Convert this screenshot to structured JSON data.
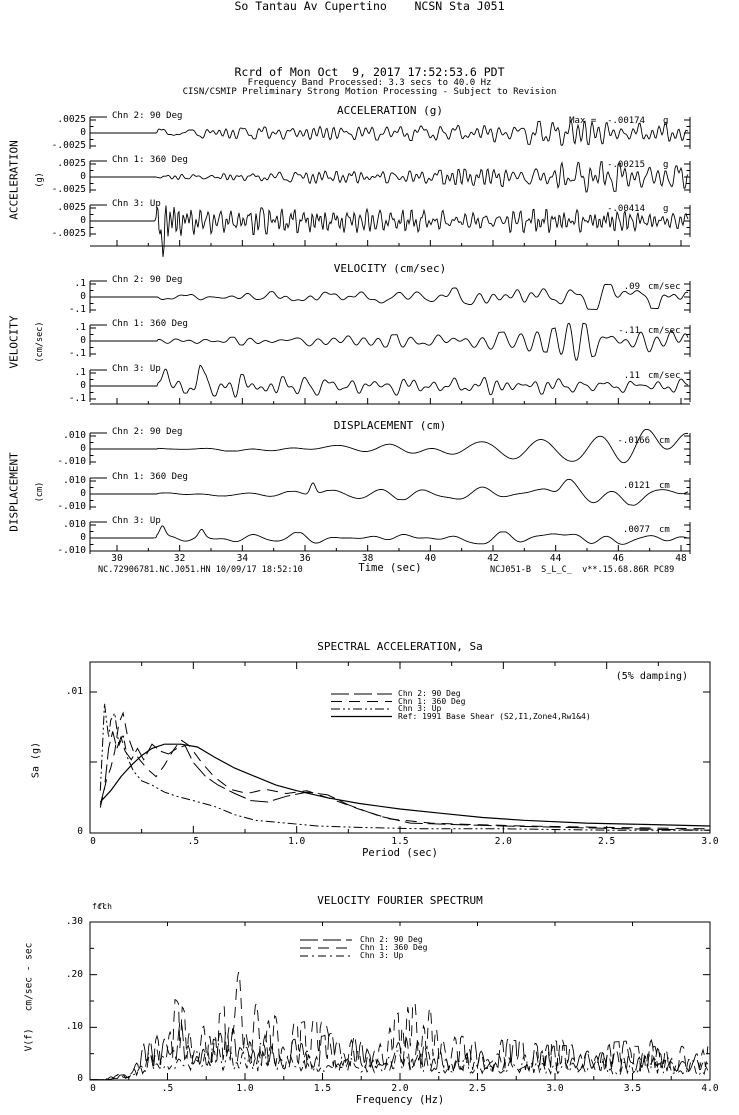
{
  "header": {
    "station_line": "So Tantau Av Cupertino    NCSN Sta J051",
    "record_line": "Rcrd of Mon Oct  9, 2017 17:52:53.6 PDT",
    "band_line": "Frequency Band Processed: 3.3 secs to 40.0 Hz",
    "notice_line": "CISN/CSMIP Preliminary Strong Motion Processing - Subject to Revision"
  },
  "footer": {
    "left": "NC.72906781.NC.J051.HN 10/09/17 18:52:10",
    "right": "NCJ051-B  S_L_C_  v**.15.68.86R PC89"
  },
  "chart_data": [
    {
      "id": "acceleration_time_history",
      "type": "line",
      "title": "ACCELERATION (g)",
      "ylabel": "ACCELERATION",
      "yunit": "(g)",
      "ytick_labels": [
        ".0025",
        "0",
        "-.0025"
      ],
      "ytick_values": [
        0.0025,
        0,
        -0.0025
      ],
      "xlim_sec": [
        29.1,
        48.3
      ],
      "channels": [
        {
          "label": "Chn 2: 90 Deg",
          "max_label": "Max =  -.00174",
          "max_value": -0.00174,
          "unit": "g"
        },
        {
          "label": "Chn 1: 360 Deg",
          "max_label": "-.00215",
          "max_value": -0.00215,
          "unit": "g"
        },
        {
          "label": "Chn 3: Up",
          "max_label": "-.00414",
          "max_value": -0.00414,
          "unit": "g"
        }
      ]
    },
    {
      "id": "velocity_time_history",
      "type": "line",
      "title": "VELOCITY (cm/sec)",
      "ylabel": "VELOCITY",
      "yunit": "(cm/sec)",
      "ytick_labels": [
        ".1",
        "0",
        "-.1"
      ],
      "ytick_values": [
        0.1,
        0,
        -0.1
      ],
      "xlim_sec": [
        29.1,
        48.3
      ],
      "channels": [
        {
          "label": "Chn 2: 90 Deg",
          "max_label": ".09",
          "max_value": 0.09,
          "unit": "cm/sec"
        },
        {
          "label": "Chn 1: 360 Deg",
          "max_label": "-.11",
          "max_value": -0.11,
          "unit": "cm/sec"
        },
        {
          "label": "Chn 3: Up",
          "max_label": ".11",
          "max_value": 0.11,
          "unit": "cm/sec"
        }
      ]
    },
    {
      "id": "displacement_time_history",
      "type": "line",
      "title": "DISPLACEMENT (cm)",
      "ylabel": "DISPLACEMENT",
      "yunit": "(cm)",
      "ytick_labels": [
        ".010",
        "0",
        "-.010"
      ],
      "ytick_values": [
        0.01,
        0,
        -0.01
      ],
      "xlim_sec": [
        29.1,
        48.3
      ],
      "xlabel": "Time (sec)",
      "xticks": [
        "30",
        "32",
        "34",
        "36",
        "38",
        "40",
        "42",
        "44",
        "46",
        "48"
      ],
      "channels": [
        {
          "label": "Chn 2: 90 Deg",
          "max_label": "-.0166",
          "max_value": -0.0166,
          "unit": "cm"
        },
        {
          "label": "Chn 1: 360 Deg",
          "max_label": ".0121",
          "max_value": 0.0121,
          "unit": "cm"
        },
        {
          "label": "Chn 3: Up",
          "max_label": ".0077",
          "max_value": 0.0077,
          "unit": "cm"
        }
      ]
    },
    {
      "id": "spectral_acceleration",
      "type": "line",
      "title": "SPECTRAL ACCELERATION, Sa",
      "note": "(5% damping)",
      "xlabel": "Period (sec)",
      "ylabel": "Sa (g)",
      "xlim": [
        0,
        3.0
      ],
      "ylim": [
        0,
        0.0121
      ],
      "xticks": [
        "0",
        ".5",
        "1.0",
        "1.5",
        "2.0",
        "2.5",
        "3.0"
      ],
      "ytick_labels": [
        ".01",
        "0"
      ],
      "ytick_values": [
        0.01,
        0
      ],
      "grid": false,
      "legend_position": "top-center",
      "series": [
        {
          "name": "Chn 2: 90 Deg",
          "dash": "long-dash",
          "points": [
            [
              0.05,
              0.002
            ],
            [
              0.07,
              0.0032
            ],
            [
              0.09,
              0.006
            ],
            [
              0.11,
              0.0072
            ],
            [
              0.13,
              0.006
            ],
            [
              0.15,
              0.0068
            ],
            [
              0.17,
              0.0058
            ],
            [
              0.2,
              0.0052
            ],
            [
              0.23,
              0.006
            ],
            [
              0.26,
              0.0052
            ],
            [
              0.3,
              0.0063
            ],
            [
              0.34,
              0.0058
            ],
            [
              0.38,
              0.0056
            ],
            [
              0.42,
              0.006
            ],
            [
              0.46,
              0.0062
            ],
            [
              0.5,
              0.005
            ],
            [
              0.56,
              0.004
            ],
            [
              0.62,
              0.0034
            ],
            [
              0.7,
              0.0028
            ],
            [
              0.78,
              0.0023
            ],
            [
              0.86,
              0.0022
            ],
            [
              0.95,
              0.0026
            ],
            [
              1.05,
              0.0029
            ],
            [
              1.15,
              0.0027
            ],
            [
              1.25,
              0.002
            ],
            [
              1.4,
              0.0012
            ],
            [
              1.55,
              0.0007
            ],
            [
              1.75,
              0.0006
            ],
            [
              2.0,
              0.0005
            ],
            [
              2.3,
              0.0004
            ],
            [
              2.6,
              0.0003
            ],
            [
              3.0,
              0.0002
            ]
          ]
        },
        {
          "name": "Chn 1: 360 Deg",
          "dash": "dash",
          "points": [
            [
              0.05,
              0.0018
            ],
            [
              0.08,
              0.0038
            ],
            [
              0.1,
              0.0046
            ],
            [
              0.12,
              0.0058
            ],
            [
              0.14,
              0.0078
            ],
            [
              0.16,
              0.0085
            ],
            [
              0.18,
              0.007
            ],
            [
              0.21,
              0.0058
            ],
            [
              0.24,
              0.0052
            ],
            [
              0.28,
              0.0045
            ],
            [
              0.32,
              0.004
            ],
            [
              0.36,
              0.0048
            ],
            [
              0.4,
              0.0058
            ],
            [
              0.44,
              0.0066
            ],
            [
              0.48,
              0.0062
            ],
            [
              0.54,
              0.005
            ],
            [
              0.6,
              0.004
            ],
            [
              0.68,
              0.0031
            ],
            [
              0.76,
              0.0028
            ],
            [
              0.85,
              0.0031
            ],
            [
              0.95,
              0.0028
            ],
            [
              1.05,
              0.003
            ],
            [
              1.15,
              0.0025
            ],
            [
              1.3,
              0.0017
            ],
            [
              1.45,
              0.001
            ],
            [
              1.65,
              0.0007
            ],
            [
              1.85,
              0.0006
            ],
            [
              2.1,
              0.0005
            ],
            [
              2.5,
              0.0004
            ],
            [
              3.0,
              0.0003
            ]
          ]
        },
        {
          "name": "Chn 3: Up",
          "dash": "dash-dot-dot",
          "points": [
            [
              0.05,
              0.003
            ],
            [
              0.06,
              0.006
            ],
            [
              0.07,
              0.0092
            ],
            [
              0.08,
              0.008
            ],
            [
              0.09,
              0.0068
            ],
            [
              0.1,
              0.008
            ],
            [
              0.12,
              0.0085
            ],
            [
              0.14,
              0.0062
            ],
            [
              0.16,
              0.007
            ],
            [
              0.18,
              0.0054
            ],
            [
              0.21,
              0.0044
            ],
            [
              0.25,
              0.0037
            ],
            [
              0.3,
              0.0034
            ],
            [
              0.36,
              0.0029
            ],
            [
              0.42,
              0.0026
            ],
            [
              0.5,
              0.0023
            ],
            [
              0.6,
              0.0019
            ],
            [
              0.7,
              0.0013
            ],
            [
              0.8,
              0.0009
            ],
            [
              0.95,
              0.0007
            ],
            [
              1.1,
              0.0005
            ],
            [
              1.3,
              0.0004
            ],
            [
              1.6,
              0.0003
            ],
            [
              2.0,
              0.0003
            ],
            [
              2.5,
              0.0002
            ],
            [
              3.0,
              0.0002
            ]
          ]
        },
        {
          "name": "Ref: 1991 Base Shear (S2,I1,Zone4,Rw1&4)",
          "dash": "solid",
          "points": [
            [
              0.05,
              0.0022
            ],
            [
              0.1,
              0.003
            ],
            [
              0.15,
              0.004
            ],
            [
              0.2,
              0.0048
            ],
            [
              0.25,
              0.0055
            ],
            [
              0.3,
              0.006
            ],
            [
              0.36,
              0.0063
            ],
            [
              0.44,
              0.0063
            ],
            [
              0.52,
              0.0061
            ],
            [
              0.6,
              0.0054
            ],
            [
              0.7,
              0.0046
            ],
            [
              0.8,
              0.004
            ],
            [
              0.9,
              0.0034
            ],
            [
              1.0,
              0.003
            ],
            [
              1.15,
              0.0025
            ],
            [
              1.3,
              0.0021
            ],
            [
              1.5,
              0.0017
            ],
            [
              1.7,
              0.0014
            ],
            [
              1.9,
              0.0011
            ],
            [
              2.1,
              0.0009
            ],
            [
              2.4,
              0.0007
            ],
            [
              2.7,
              0.0006
            ],
            [
              3.0,
              0.0005
            ]
          ]
        }
      ]
    },
    {
      "id": "velocity_fourier_spectrum",
      "type": "line",
      "title": "VELOCITY FOURIER SPECTRUM",
      "fc_labels": [
        "fcl",
        "fch"
      ],
      "xlabel": "Frequency (Hz)",
      "ylabel": "V(f)   cm/sec - sec",
      "xlim": [
        0,
        4.0
      ],
      "ylim": [
        0,
        0.3
      ],
      "xticks": [
        "0",
        ".5",
        "1.0",
        "1.5",
        "2.0",
        "2.5",
        "3.0",
        "3.5",
        "4.0"
      ],
      "ytick_labels": [
        ".30",
        ".20",
        ".10",
        "0"
      ],
      "ytick_values": [
        0.3,
        0.2,
        0.1,
        0
      ],
      "grid": false,
      "legend_position": "top-center",
      "series": [
        {
          "name": "Chn 2: 90 Deg",
          "dash": "long-dash",
          "envelope": [
            [
              0.1,
              0.002
            ],
            [
              0.25,
              0.01
            ],
            [
              0.35,
              0.06
            ],
            [
              0.45,
              0.09
            ],
            [
              0.55,
              0.11
            ],
            [
              0.65,
              0.075
            ],
            [
              0.8,
              0.065
            ],
            [
              0.95,
              0.08
            ],
            [
              1.1,
              0.075
            ],
            [
              1.3,
              0.06
            ],
            [
              1.5,
              0.065
            ],
            [
              1.7,
              0.08
            ],
            [
              1.9,
              0.065
            ],
            [
              2.1,
              0.06
            ],
            [
              2.4,
              0.055
            ],
            [
              2.7,
              0.06
            ],
            [
              3.0,
              0.05
            ],
            [
              3.3,
              0.055
            ],
            [
              3.6,
              0.06
            ],
            [
              4.0,
              0.045
            ]
          ]
        },
        {
          "name": "Chn 1: 360 Deg",
          "dash": "dash",
          "envelope": [
            [
              0.1,
              0.002
            ],
            [
              0.25,
              0.012
            ],
            [
              0.4,
              0.05
            ],
            [
              0.55,
              0.12
            ],
            [
              0.7,
              0.08
            ],
            [
              0.85,
              0.1
            ],
            [
              0.97,
              0.17
            ],
            [
              1.02,
              0.19
            ],
            [
              1.1,
              0.12
            ],
            [
              1.25,
              0.08
            ],
            [
              1.45,
              0.09
            ],
            [
              1.65,
              0.07
            ],
            [
              1.85,
              0.075
            ],
            [
              2.05,
              0.11
            ],
            [
              2.15,
              0.12
            ],
            [
              2.3,
              0.07
            ],
            [
              2.5,
              0.06
            ],
            [
              2.8,
              0.055
            ],
            [
              3.1,
              0.06
            ],
            [
              3.5,
              0.05
            ],
            [
              4.0,
              0.05
            ]
          ]
        },
        {
          "name": "Chn 3: Up",
          "dash": "dash-dot",
          "envelope": [
            [
              0.1,
              0.002
            ],
            [
              0.3,
              0.02
            ],
            [
              0.45,
              0.07
            ],
            [
              0.6,
              0.055
            ],
            [
              0.75,
              0.065
            ],
            [
              0.9,
              0.05
            ],
            [
              1.1,
              0.055
            ],
            [
              1.3,
              0.05
            ],
            [
              1.5,
              0.045
            ],
            [
              1.8,
              0.04
            ],
            [
              2.1,
              0.045
            ],
            [
              2.5,
              0.04
            ],
            [
              2.9,
              0.04
            ],
            [
              3.3,
              0.035
            ],
            [
              3.7,
              0.035
            ],
            [
              4.0,
              0.03
            ]
          ]
        }
      ]
    }
  ]
}
